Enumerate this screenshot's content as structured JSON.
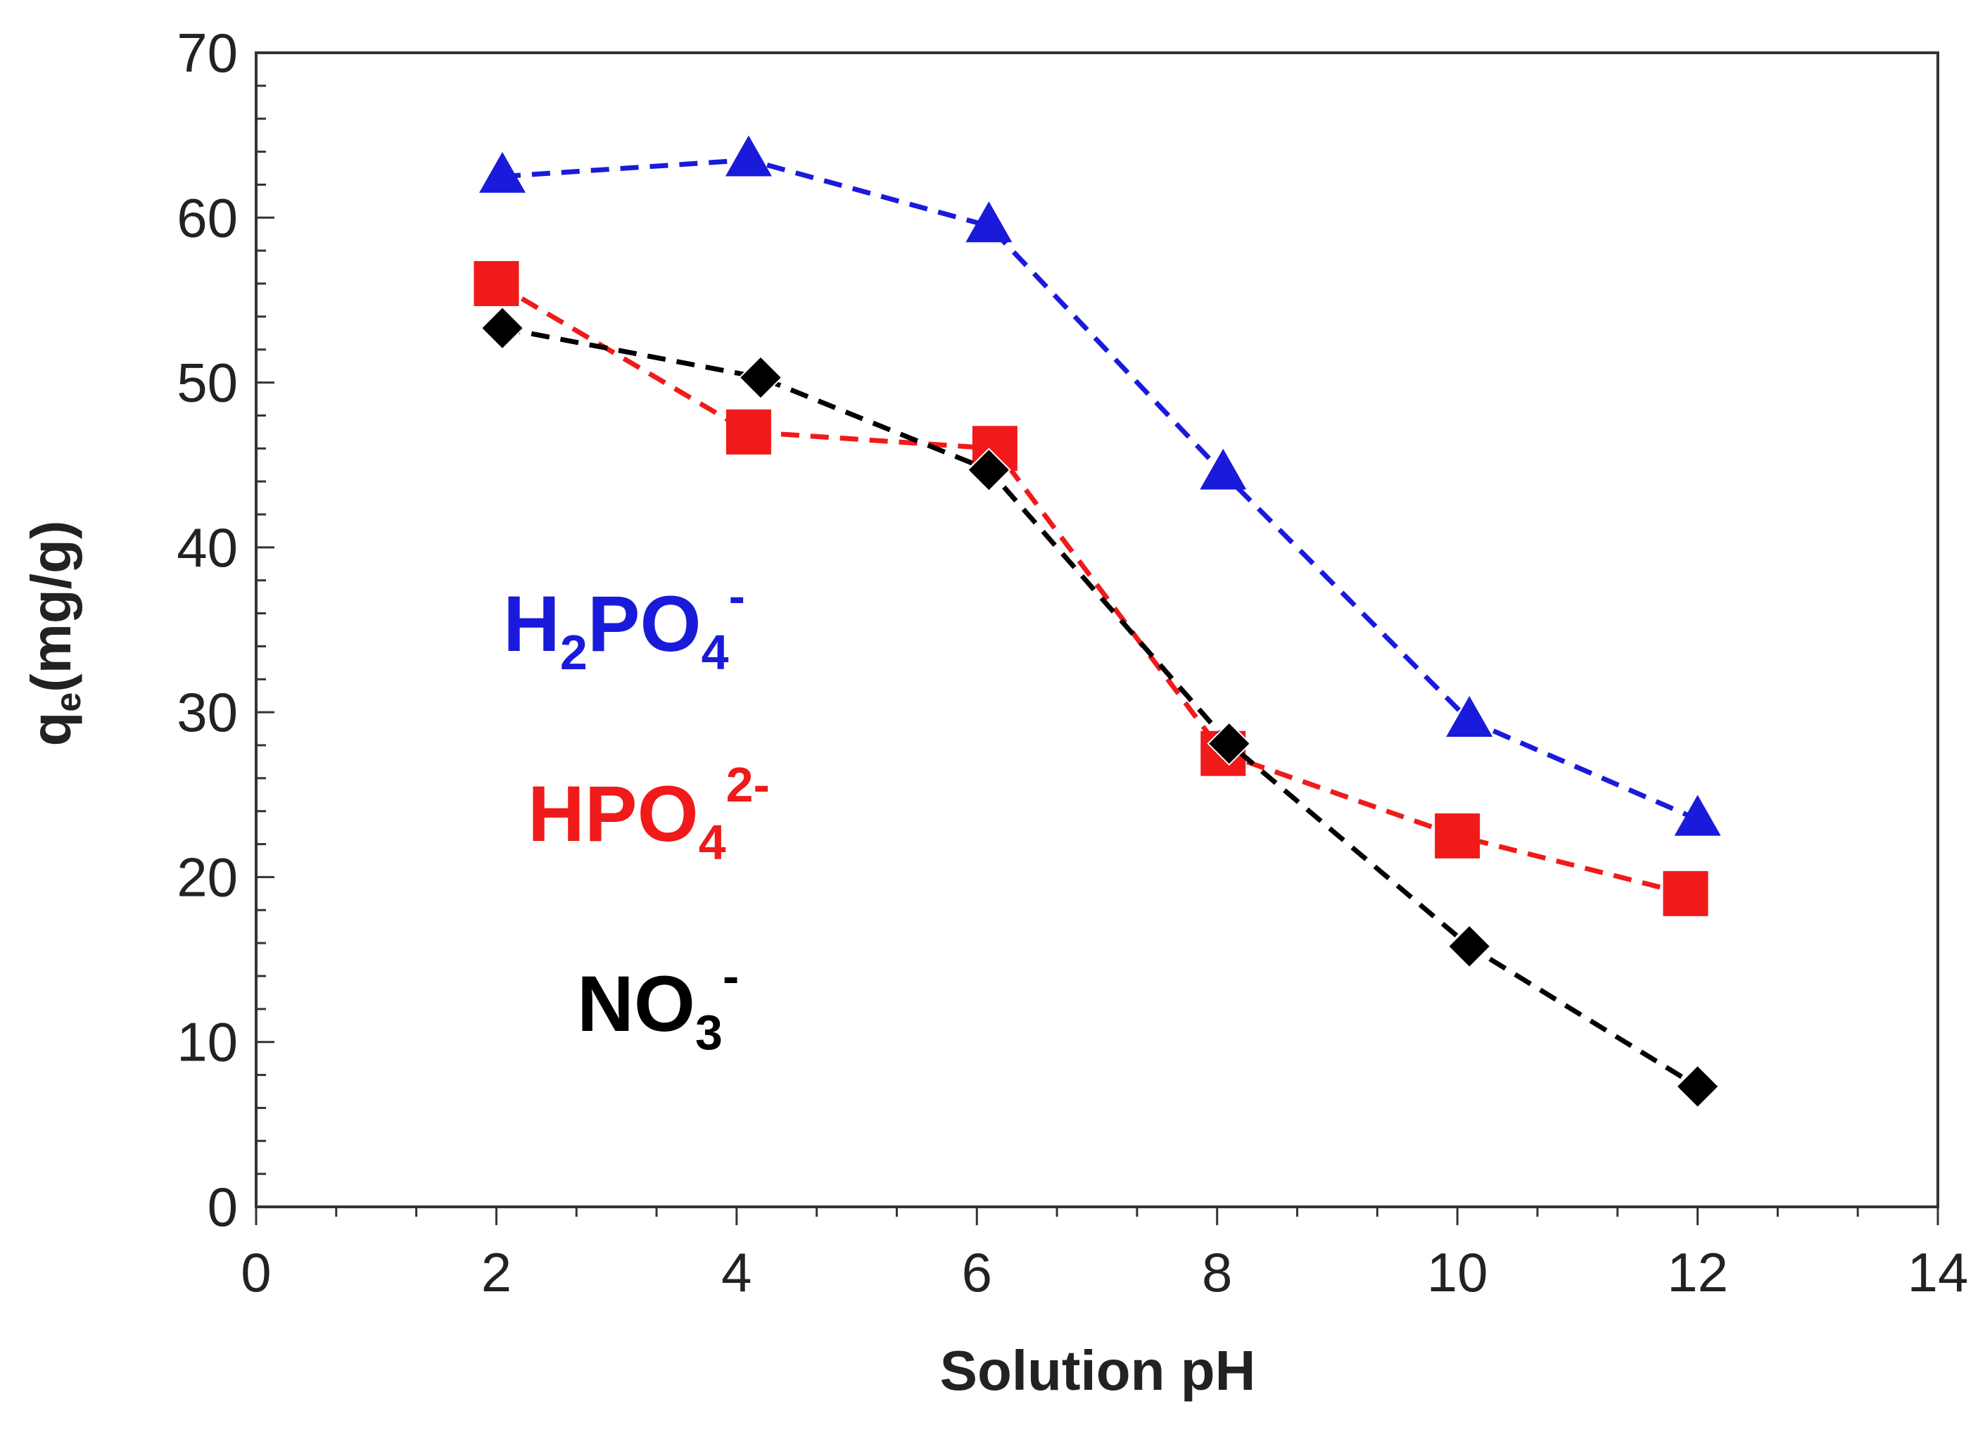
{
  "chart_data": {
    "type": "line",
    "title": "",
    "xlabel": "Solution pH",
    "ylabel": "qe(mg/g)",
    "ylabel_main": "q",
    "ylabel_sub": "e",
    "ylabel_rest": "(mg/g)",
    "xlim": [
      0,
      14
    ],
    "ylim": [
      0,
      70
    ],
    "xticks": [
      0,
      2,
      4,
      6,
      8,
      10,
      12,
      14
    ],
    "yticks": [
      0,
      10,
      20,
      30,
      40,
      50,
      60,
      70
    ],
    "grid": false,
    "legend": "inline labels on left of plot",
    "series": [
      {
        "name": "H2PO4-",
        "label_main": "H",
        "label_sub": "2",
        "label_mid": "PO",
        "label_sub2": "4",
        "label_sup": "-",
        "color": "#1a1adb",
        "marker": "triangle",
        "x": [
          2.05,
          4.1,
          6.1,
          8.05,
          10.1,
          12.0
        ],
        "y": [
          62.5,
          63.5,
          59.5,
          44.5,
          29.5,
          23.5
        ]
      },
      {
        "name": "HPO4 2-",
        "label_main": "HPO",
        "label_sub": "4",
        "label_sup": "2-",
        "color": "#f01a1a",
        "marker": "square",
        "x": [
          2.0,
          4.1,
          6.15,
          8.05,
          10.0,
          11.9
        ],
        "y": [
          56.0,
          47.0,
          46.0,
          27.5,
          22.5,
          19.0
        ]
      },
      {
        "name": "NO3-",
        "label_main": "NO",
        "label_sub": "3",
        "label_sup": "-",
        "color": "#000000",
        "marker": "diamond",
        "x": [
          2.05,
          4.2,
          6.1,
          8.1,
          10.1,
          12.0
        ],
        "y": [
          53.3,
          50.3,
          44.7,
          28.1,
          15.8,
          7.3
        ]
      }
    ]
  }
}
